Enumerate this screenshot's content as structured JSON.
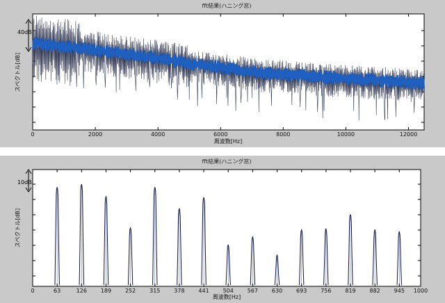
{
  "chart_data": [
    {
      "type": "line",
      "title": "fft結果(ハニング窓)",
      "xlabel": "周波数[Hz]",
      "ylabel": "スペクトル[dB]",
      "xlim": [
        0,
        12500
      ],
      "x_ticks": [
        0,
        2000,
        4000,
        6000,
        8000,
        10000,
        12000
      ],
      "annotation": "40dB",
      "series_color": "#1f5fbf",
      "envelope_color": "#333a55",
      "trend": {
        "x": [
          0,
          1000,
          2000,
          3000,
          4000,
          5000,
          6000,
          7000,
          8000,
          9000,
          10000,
          11000,
          12500
        ],
        "y": [
          75,
          72,
          69,
          65,
          62,
          57,
          54,
          50,
          48,
          46,
          44,
          43,
          40
        ]
      },
      "ylim": [
        0,
        100
      ]
    },
    {
      "type": "line",
      "title": "fft結果(ハニング窓)",
      "xlabel": "周波数[Hz]",
      "ylabel": "スペクトル[dB]",
      "xlim": [
        0,
        1000
      ],
      "x_ticks": [
        "0",
        "63",
        "126",
        "189",
        "252",
        "315",
        "378",
        "441",
        "504",
        "567",
        "630",
        "693",
        "756",
        "819",
        "882",
        "945",
        "1000"
      ],
      "annotation": "10dB",
      "line_color": "#10103a",
      "ylim": [
        0,
        100
      ],
      "peaks": {
        "x": [
          63,
          126,
          189,
          252,
          315,
          378,
          441,
          504,
          567,
          630,
          693,
          756,
          819,
          882,
          945
        ],
        "y": [
          97,
          100,
          88,
          57,
          97,
          76,
          87,
          40,
          48,
          30,
          55,
          56,
          70,
          55,
          53
        ]
      }
    }
  ]
}
